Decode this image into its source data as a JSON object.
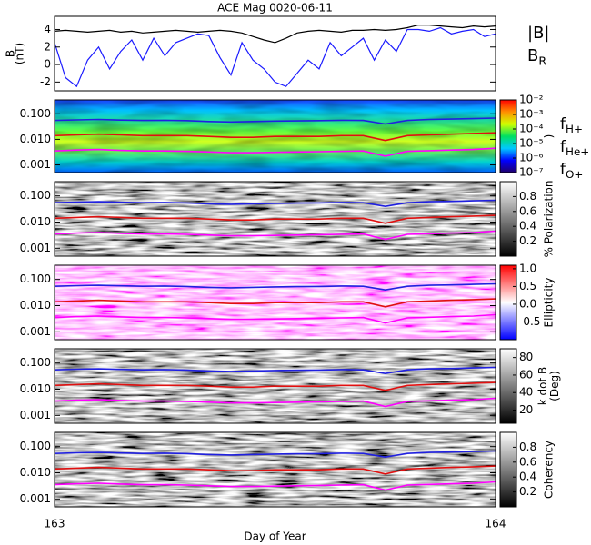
{
  "chart_data": [
    {
      "type": "line",
      "title": "ACE Mag 0020-06-11",
      "ylabel": [
        "B",
        "(nT)"
      ],
      "x": [
        163.0,
        163.025,
        163.05,
        163.075,
        163.1,
        163.125,
        163.15,
        163.175,
        163.2,
        163.225,
        163.25,
        163.275,
        163.3,
        163.325,
        163.35,
        163.375,
        163.4,
        163.425,
        163.45,
        163.475,
        163.5,
        163.525,
        163.55,
        163.575,
        163.6,
        163.625,
        163.65,
        163.675,
        163.7,
        163.725,
        163.75,
        163.775,
        163.8,
        163.825,
        163.85,
        163.875,
        163.9,
        163.925,
        163.95,
        163.975,
        164.0
      ],
      "series": [
        {
          "name": "|B|",
          "color": "#000000",
          "values": [
            3.8,
            3.9,
            3.8,
            3.7,
            3.8,
            3.9,
            3.7,
            3.8,
            3.6,
            3.7,
            3.8,
            3.9,
            3.8,
            3.7,
            3.8,
            3.9,
            3.8,
            3.6,
            3.2,
            2.8,
            2.5,
            3.0,
            3.6,
            3.8,
            3.9,
            3.8,
            3.7,
            3.9,
            3.9,
            4.0,
            3.9,
            4.0,
            4.2,
            4.5,
            4.5,
            4.4,
            4.3,
            4.2,
            4.4,
            4.3,
            4.4
          ]
        },
        {
          "name": "B",
          "subscript": "R",
          "color": "#1a1aff",
          "values": [
            2.5,
            -1.5,
            -2.5,
            0.5,
            2.0,
            -0.5,
            1.5,
            2.8,
            0.5,
            3.0,
            1.0,
            2.5,
            3.0,
            3.5,
            3.3,
            0.8,
            -1.2,
            2.5,
            0.5,
            -0.5,
            -2.0,
            -2.5,
            -1.0,
            0.5,
            -0.5,
            2.5,
            1.0,
            2.0,
            3.0,
            0.5,
            2.8,
            1.5,
            4.0,
            4.0,
            3.8,
            4.2,
            3.5,
            3.8,
            4.0,
            3.2,
            3.5
          ]
        }
      ],
      "xlim": [
        163,
        164
      ],
      "ylim": [
        -3,
        5.5
      ],
      "yticks": [
        -2,
        0,
        2,
        4
      ]
    },
    {
      "type": "spectrogram",
      "background": "rainbow",
      "ylim": [
        0.0005,
        0.35
      ],
      "log_y": true,
      "yticks": [
        0.001,
        {
          "value": 0.01,
          "label": "0.010"
        },
        {
          "value": 0.1,
          "label": "0.100"
        }
      ],
      "colorbar_label": [
        ")"
      ],
      "clim": [
        1e-07,
        0.01
      ],
      "log_c": true,
      "colormap": [
        "#20006a",
        "#0000ff",
        "#00c8ff",
        "#00e060",
        "#d0ff00",
        "#ff9000",
        "#ff0000"
      ],
      "cticks": [
        {
          "value": 0.01,
          "label": "10⁻²"
        },
        {
          "value": 0.001,
          "label": "10⁻³"
        },
        {
          "value": 0.0001,
          "label": "10⁻⁴"
        },
        {
          "value": 1e-05,
          "label": "10⁻⁵"
        },
        {
          "value": 1e-06,
          "label": "10⁻⁶"
        },
        {
          "value": 1e-07,
          "label": "10⁻⁷"
        }
      ],
      "x": [
        163.0,
        163.05,
        163.1,
        163.15,
        163.2,
        163.25,
        163.3,
        163.35,
        163.4,
        163.45,
        163.5,
        163.55,
        163.6,
        163.65,
        163.7,
        163.75,
        163.8,
        163.85,
        163.9,
        163.95,
        164.0
      ],
      "series": [
        {
          "name": "f",
          "subscript": "H+",
          "color": "#2020e0",
          "values": [
            0.055,
            0.058,
            0.06,
            0.057,
            0.055,
            0.056,
            0.054,
            0.05,
            0.048,
            0.05,
            0.052,
            0.053,
            0.054,
            0.056,
            0.055,
            0.04,
            0.055,
            0.06,
            0.062,
            0.065,
            0.068
          ]
        },
        {
          "name": "f",
          "subscript": "He+",
          "color": "#e01010",
          "values": [
            0.014,
            0.015,
            0.016,
            0.015,
            0.014,
            0.014,
            0.014,
            0.013,
            0.012,
            0.012,
            0.013,
            0.013,
            0.013,
            0.014,
            0.014,
            0.009,
            0.014,
            0.015,
            0.016,
            0.017,
            0.018
          ]
        },
        {
          "name": "f",
          "subscript": "O+",
          "color": "#ff00ff",
          "values": [
            0.0035,
            0.0038,
            0.004,
            0.0037,
            0.0035,
            0.0035,
            0.0034,
            0.0032,
            0.003,
            0.003,
            0.0031,
            0.0032,
            0.0033,
            0.0034,
            0.0035,
            0.0022,
            0.0034,
            0.0036,
            0.0038,
            0.004,
            0.0045
          ]
        }
      ]
    },
    {
      "type": "spectrogram",
      "background": "grey",
      "ylim": [
        0.0005,
        0.35
      ],
      "log_y": true,
      "yticks": [
        0.001,
        {
          "value": 0.01,
          "label": "0.010"
        },
        {
          "value": 0.1,
          "label": "0.100"
        }
      ],
      "colorbar_label": [
        "% Polarization"
      ],
      "clim": [
        0,
        1
      ],
      "colormap": [
        "#000000",
        "#ffffff"
      ],
      "cticks": [
        0.2,
        0.4,
        0.6,
        0.8
      ],
      "x": [
        163.0,
        163.05,
        163.1,
        163.15,
        163.2,
        163.25,
        163.3,
        163.35,
        163.4,
        163.45,
        163.5,
        163.55,
        163.6,
        163.65,
        163.7,
        163.75,
        163.8,
        163.85,
        163.9,
        163.95,
        164.0
      ],
      "series": [
        {
          "color": "#2020e0",
          "values": [
            0.055,
            0.058,
            0.06,
            0.057,
            0.055,
            0.056,
            0.054,
            0.05,
            0.048,
            0.05,
            0.052,
            0.053,
            0.054,
            0.056,
            0.055,
            0.04,
            0.055,
            0.06,
            0.062,
            0.065,
            0.068
          ]
        },
        {
          "color": "#e01010",
          "values": [
            0.014,
            0.015,
            0.016,
            0.015,
            0.014,
            0.014,
            0.014,
            0.013,
            0.012,
            0.012,
            0.013,
            0.013,
            0.013,
            0.014,
            0.014,
            0.009,
            0.014,
            0.015,
            0.016,
            0.017,
            0.018
          ]
        },
        {
          "color": "#ff00ff",
          "values": [
            0.0035,
            0.0038,
            0.004,
            0.0037,
            0.0035,
            0.0035,
            0.0034,
            0.0032,
            0.003,
            0.003,
            0.0031,
            0.0032,
            0.0033,
            0.0034,
            0.0035,
            0.0022,
            0.0034,
            0.0036,
            0.0038,
            0.004,
            0.0045
          ]
        }
      ]
    },
    {
      "type": "spectrogram",
      "background": "redblue",
      "ylim": [
        0.0005,
        0.35
      ],
      "log_y": true,
      "yticks": [
        0.001,
        {
          "value": 0.01,
          "label": "0.010"
        },
        {
          "value": 0.1,
          "label": "0.100"
        }
      ],
      "colorbar_label": [
        "Ellipticity"
      ],
      "clim": [
        -1,
        1.1
      ],
      "colormap": [
        "#0000ff",
        "#ffffff",
        "#ff0000"
      ],
      "cticks": [
        -0.5,
        {
          "value": 0,
          "label": "0.0"
        },
        0.5,
        {
          "value": 1,
          "label": "1.0"
        }
      ],
      "x": [
        163.0,
        163.05,
        163.1,
        163.15,
        163.2,
        163.25,
        163.3,
        163.35,
        163.4,
        163.45,
        163.5,
        163.55,
        163.6,
        163.65,
        163.7,
        163.75,
        163.8,
        163.85,
        163.9,
        163.95,
        164.0
      ],
      "series": [
        {
          "color": "#2020e0",
          "values": [
            0.055,
            0.058,
            0.06,
            0.057,
            0.055,
            0.056,
            0.054,
            0.05,
            0.048,
            0.05,
            0.052,
            0.053,
            0.054,
            0.056,
            0.055,
            0.04,
            0.055,
            0.06,
            0.062,
            0.065,
            0.068
          ]
        },
        {
          "color": "#e01010",
          "values": [
            0.014,
            0.015,
            0.016,
            0.015,
            0.014,
            0.014,
            0.014,
            0.013,
            0.012,
            0.012,
            0.013,
            0.013,
            0.013,
            0.014,
            0.014,
            0.009,
            0.014,
            0.015,
            0.016,
            0.017,
            0.018
          ]
        },
        {
          "color": "#ff00ff",
          "values": [
            0.0035,
            0.0038,
            0.004,
            0.0037,
            0.0035,
            0.0035,
            0.0034,
            0.0032,
            0.003,
            0.003,
            0.0031,
            0.0032,
            0.0033,
            0.0034,
            0.0035,
            0.0022,
            0.0034,
            0.0036,
            0.0038,
            0.004,
            0.0045
          ]
        }
      ]
    },
    {
      "type": "spectrogram",
      "background": "grey",
      "ylim": [
        0.0005,
        0.35
      ],
      "log_y": true,
      "yticks": [
        0.001,
        {
          "value": 0.01,
          "label": "0.010"
        },
        {
          "value": 0.1,
          "label": "0.100"
        }
      ],
      "colorbar_label": [
        "k dot B",
        "(Deg)"
      ],
      "clim": [
        5,
        90
      ],
      "colormap": [
        "#000000",
        "#ffffff"
      ],
      "cticks": [
        20,
        40,
        60,
        80
      ],
      "x": [
        163.0,
        163.05,
        163.1,
        163.15,
        163.2,
        163.25,
        163.3,
        163.35,
        163.4,
        163.45,
        163.5,
        163.55,
        163.6,
        163.65,
        163.7,
        163.75,
        163.8,
        163.85,
        163.9,
        163.95,
        164.0
      ],
      "series": [
        {
          "color": "#2020e0",
          "values": [
            0.055,
            0.058,
            0.06,
            0.057,
            0.055,
            0.056,
            0.054,
            0.05,
            0.048,
            0.05,
            0.052,
            0.053,
            0.054,
            0.056,
            0.055,
            0.04,
            0.055,
            0.06,
            0.062,
            0.065,
            0.068
          ]
        },
        {
          "color": "#e01010",
          "values": [
            0.014,
            0.015,
            0.016,
            0.015,
            0.014,
            0.014,
            0.014,
            0.013,
            0.012,
            0.012,
            0.013,
            0.013,
            0.013,
            0.014,
            0.014,
            0.009,
            0.014,
            0.015,
            0.016,
            0.017,
            0.018
          ]
        },
        {
          "color": "#ff00ff",
          "values": [
            0.0035,
            0.0038,
            0.004,
            0.0037,
            0.0035,
            0.0035,
            0.0034,
            0.0032,
            0.003,
            0.003,
            0.0031,
            0.0032,
            0.0033,
            0.0034,
            0.0035,
            0.0022,
            0.0034,
            0.0036,
            0.0038,
            0.004,
            0.0045
          ]
        }
      ]
    },
    {
      "type": "spectrogram",
      "background": "grey",
      "ylim": [
        0.0005,
        0.35
      ],
      "log_y": true,
      "yticks": [
        0.001,
        {
          "value": 0.01,
          "label": "0.010"
        },
        {
          "value": 0.1,
          "label": "0.100"
        }
      ],
      "colorbar_label": [
        "Coherency"
      ],
      "clim": [
        0,
        1
      ],
      "colormap": [
        "#000000",
        "#ffffff"
      ],
      "cticks": [
        0.2,
        0.4,
        0.6,
        0.8
      ],
      "x": [
        163.0,
        163.05,
        163.1,
        163.15,
        163.2,
        163.25,
        163.3,
        163.35,
        163.4,
        163.45,
        163.5,
        163.55,
        163.6,
        163.65,
        163.7,
        163.75,
        163.8,
        163.85,
        163.9,
        163.95,
        164.0
      ],
      "xlabel": "Day of Year",
      "xlim": [
        163,
        164
      ],
      "xticks": [
        163,
        164
      ],
      "series": [
        {
          "color": "#2020e0",
          "values": [
            0.055,
            0.058,
            0.06,
            0.057,
            0.055,
            0.056,
            0.054,
            0.05,
            0.048,
            0.05,
            0.052,
            0.053,
            0.054,
            0.056,
            0.055,
            0.04,
            0.055,
            0.06,
            0.062,
            0.065,
            0.068
          ]
        },
        {
          "color": "#e01010",
          "values": [
            0.014,
            0.015,
            0.016,
            0.015,
            0.014,
            0.014,
            0.014,
            0.013,
            0.012,
            0.012,
            0.013,
            0.013,
            0.013,
            0.014,
            0.014,
            0.009,
            0.014,
            0.015,
            0.016,
            0.017,
            0.018
          ]
        },
        {
          "color": "#ff00ff",
          "values": [
            0.0035,
            0.0038,
            0.004,
            0.0037,
            0.0035,
            0.0035,
            0.0034,
            0.0032,
            0.003,
            0.003,
            0.0031,
            0.0032,
            0.0033,
            0.0034,
            0.0035,
            0.0022,
            0.0034,
            0.0036,
            0.0038,
            0.004,
            0.0045
          ]
        }
      ]
    }
  ]
}
